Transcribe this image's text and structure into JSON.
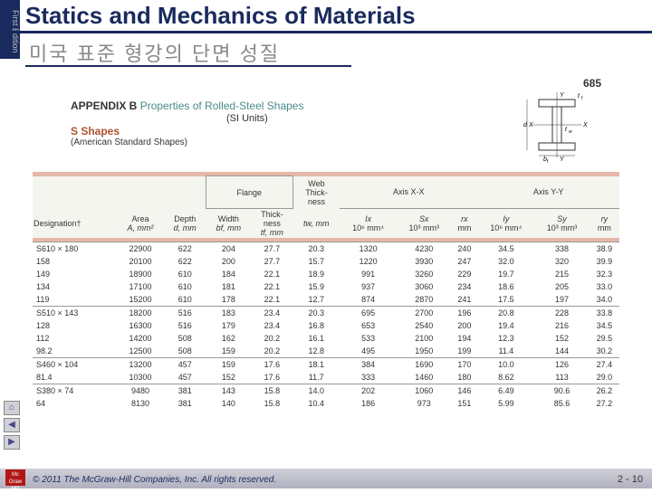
{
  "header": {
    "edition": "First Edition",
    "title": "Statics and Mechanics of Materials",
    "subtitle": "미국 표준 형강의 단면 성질",
    "page_top": "685"
  },
  "appendix": {
    "label_bold": "APPENDIX B",
    "label_rest": "Properties of Rolled-Steel Shapes",
    "si": "(SI Units)",
    "shapes": "S Shapes",
    "shapes_sub": "(American Standard Shapes)"
  },
  "ibeam": {
    "labels": {
      "tf": "t",
      "tf_sub": "f",
      "d": "d",
      "tw": "t",
      "tw_sub": "w",
      "bf": "b",
      "bf_sub": "f",
      "X": "X",
      "Y": "Y"
    }
  },
  "table": {
    "groups": {
      "flange": "Flange",
      "web": "Web\nThick-\nness",
      "axisXX": "Axis X-X",
      "axisYY": "Axis Y-Y"
    },
    "cols": {
      "designation": "Designation†",
      "area": "Area",
      "area_u": "A, mm²",
      "depth": "Depth",
      "depth_u": "d, mm",
      "width": "Width",
      "width_u": "bf, mm",
      "thick": "Thick-\nness",
      "thick_u": "tf, mm",
      "tw_u": "tw, mm",
      "Ix": "Ix",
      "Ix_u": "10⁶ mm⁴",
      "Sx": "Sx",
      "Sx_u": "10³ mm³",
      "rx": "rx",
      "rx_u": "mm",
      "Iy": "Iy",
      "Iy_u": "10⁶ mm⁴",
      "Sy": "Sy",
      "Sy_u": "10³ mm³",
      "ry": "ry",
      "ry_u": "mm"
    },
    "rows": [
      [
        "S610 × 180",
        "22900",
        "622",
        "204",
        "27.7",
        "20.3",
        "1320",
        "4230",
        "240",
        "34.5",
        "338",
        "38.9"
      ],
      [
        "158",
        "20100",
        "622",
        "200",
        "27.7",
        "15.7",
        "1220",
        "3930",
        "247",
        "32.0",
        "320",
        "39.9"
      ],
      [
        "149",
        "18900",
        "610",
        "184",
        "22.1",
        "18.9",
        "991",
        "3260",
        "229",
        "19.7",
        "215",
        "32.3"
      ],
      [
        "134",
        "17100",
        "610",
        "181",
        "22.1",
        "15.9",
        "937",
        "3060",
        "234",
        "18.6",
        "205",
        "33.0"
      ],
      [
        "119",
        "15200",
        "610",
        "178",
        "22.1",
        "12.7",
        "874",
        "2870",
        "241",
        "17.5",
        "197",
        "34.0"
      ],
      [
        "S510 × 143",
        "18200",
        "516",
        "183",
        "23.4",
        "20.3",
        "695",
        "2700",
        "196",
        "20.8",
        "228",
        "33.8"
      ],
      [
        "128",
        "16300",
        "516",
        "179",
        "23.4",
        "16.8",
        "653",
        "2540",
        "200",
        "19.4",
        "216",
        "34.5"
      ],
      [
        "112",
        "14200",
        "508",
        "162",
        "20.2",
        "16.1",
        "533",
        "2100",
        "194",
        "12.3",
        "152",
        "29.5"
      ],
      [
        "98.2",
        "12500",
        "508",
        "159",
        "20.2",
        "12.8",
        "495",
        "1950",
        "199",
        "11.4",
        "144",
        "30.2"
      ],
      [
        "S460 × 104",
        "13200",
        "457",
        "159",
        "17.6",
        "18.1",
        "384",
        "1690",
        "170",
        "10.0",
        "126",
        "27.4"
      ],
      [
        "81.4",
        "10300",
        "457",
        "152",
        "17.6",
        "11.7",
        "333",
        "1460",
        "180",
        "8.62",
        "113",
        "29.0"
      ],
      [
        "S380 × 74",
        "9480",
        "381",
        "143",
        "15.8",
        "14.0",
        "202",
        "1060",
        "146",
        "6.49",
        "90.6",
        "26.2"
      ],
      [
        "64",
        "8130",
        "381",
        "140",
        "15.8",
        "10.4",
        "186",
        "973",
        "151",
        "5.99",
        "85.6",
        "27.2"
      ]
    ],
    "section_starts": [
      0,
      5,
      9,
      11
    ]
  },
  "footer": {
    "copyright": "© 2011 The McGraw-Hill Companies, Inc. All rights reserved.",
    "page": "2 - 10",
    "logo": "Mc Graw Hill"
  }
}
